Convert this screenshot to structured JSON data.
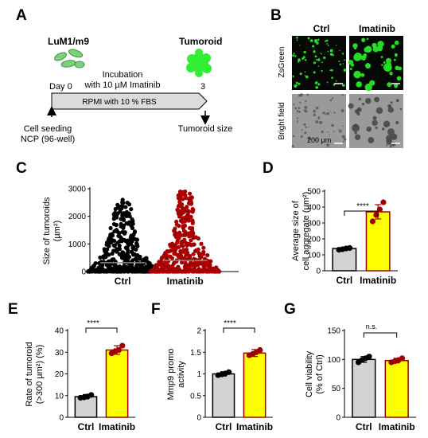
{
  "panels": {
    "A": {
      "letter": "A",
      "cell_line": "LuM1/m9",
      "tumoroid_title": "Tumoroid",
      "incubation_line1": "Incubation",
      "incubation_line2": "with 10 µM Imatinib",
      "day0": "Day 0",
      "day3": "3",
      "medium": "RPMI with 10 % FBS",
      "seeding_line1": "Cell seeding",
      "seeding_line2": "NCP (96-well)",
      "endpoint": "Tumoroid size",
      "colors": {
        "cells": "#7ed07e",
        "cells_dark": "#3a9a3a",
        "tumoroid": "#33ee33",
        "bar": "#dcdcdc"
      }
    },
    "B": {
      "letter": "B",
      "col_ctrl": "Ctrl",
      "col_imatinib": "Imatinib",
      "row_zsgreen": "ZsGreen",
      "row_brightfield": "Bright field",
      "scalebar": "200 µm",
      "colors": {
        "fluor_bg": "#050805",
        "fluor_spot": "#22dd22",
        "bf_bg": "#9a9a9a"
      }
    },
    "C": {
      "letter": "C"
    },
    "D": {
      "letter": "D",
      "significance": "****"
    },
    "E": {
      "letter": "E",
      "significance": "****"
    },
    "F": {
      "letter": "F",
      "significance": "****"
    },
    "G": {
      "letter": "G",
      "significance": "n.s."
    }
  },
  "chart_data": [
    {
      "panel": "C",
      "type": "scatter",
      "ylabel_line1": "Size of tumoroids",
      "ylabel_line2": "(µm²)",
      "categories": [
        "Ctrl",
        "Imatinib"
      ],
      "ylim": [
        0,
        3000
      ],
      "yticks": [
        0,
        1000,
        2000,
        3000
      ],
      "colors": [
        "#000000",
        "#a80000"
      ],
      "medians": [
        320,
        400
      ],
      "max_values": [
        2600,
        2900
      ]
    },
    {
      "panel": "D",
      "type": "bar",
      "ylabel_line1": "Average size of",
      "ylabel_line2": "cell aggregate (µm²)",
      "categories": [
        "Ctrl",
        "Imatinib"
      ],
      "values": [
        140,
        370
      ],
      "errors": [
        8,
        45
      ],
      "points": [
        [
          132,
          135,
          140,
          143
        ],
        [
          310,
          350,
          385,
          430
        ]
      ],
      "ylim": [
        0,
        500
      ],
      "yticks": [
        0,
        100,
        200,
        300,
        400,
        500
      ],
      "bar_colors": [
        "#d3d3d3",
        "#ffff00"
      ],
      "edge_colors": [
        "#000000",
        "#a00000"
      ],
      "point_colors": [
        "#000000",
        "#a00000"
      ]
    },
    {
      "panel": "E",
      "type": "bar",
      "ylabel_line1": "Rate of tumoroid",
      "ylabel_line2": "(>300 µm²) (%)",
      "categories": [
        "Ctrl",
        "Imatinib"
      ],
      "values": [
        9.5,
        31
      ],
      "errors": [
        1,
        2
      ],
      "points": [
        [
          9,
          9.2,
          9.6,
          10.3
        ],
        [
          29.5,
          30.5,
          31,
          33
        ]
      ],
      "ylim": [
        0,
        40
      ],
      "yticks": [
        0,
        10,
        20,
        30,
        40
      ],
      "bar_colors": [
        "#d3d3d3",
        "#ffff00"
      ],
      "edge_colors": [
        "#000000",
        "#a00000"
      ],
      "point_colors": [
        "#000000",
        "#a00000"
      ]
    },
    {
      "panel": "F",
      "type": "bar",
      "ylabel_line1": "Mmp9 promo",
      "ylabel_line2": "activity",
      "categories": [
        "Ctrl",
        "Imatinib"
      ],
      "values": [
        1.0,
        1.48
      ],
      "errors": [
        0.05,
        0.08
      ],
      "points": [
        [
          0.97,
          0.99,
          1.01,
          1.04
        ],
        [
          1.43,
          1.46,
          1.5,
          1.55
        ]
      ],
      "ylim": [
        0,
        2.0
      ],
      "yticks": [
        0,
        0.5,
        1.0,
        1.5,
        2.0
      ],
      "bar_colors": [
        "#d3d3d3",
        "#ffff00"
      ],
      "edge_colors": [
        "#000000",
        "#a00000"
      ],
      "point_colors": [
        "#000000",
        "#a00000"
      ]
    },
    {
      "panel": "G",
      "type": "bar",
      "ylabel_line1": "Cell viability",
      "ylabel_line2": "(% of Ctrl)",
      "categories": [
        "Ctrl",
        "Imatinib"
      ],
      "values": [
        100,
        98
      ],
      "errors": [
        5,
        4
      ],
      "points": [
        [
          95,
          99,
          102,
          105
        ],
        [
          95,
          97,
          99,
          102
        ]
      ],
      "ylim": [
        0,
        150
      ],
      "yticks": [
        0,
        50,
        100,
        150
      ],
      "bar_colors": [
        "#d3d3d3",
        "#ffff00"
      ],
      "edge_colors": [
        "#000000",
        "#a00000"
      ],
      "point_colors": [
        "#000000",
        "#a00000"
      ]
    }
  ]
}
